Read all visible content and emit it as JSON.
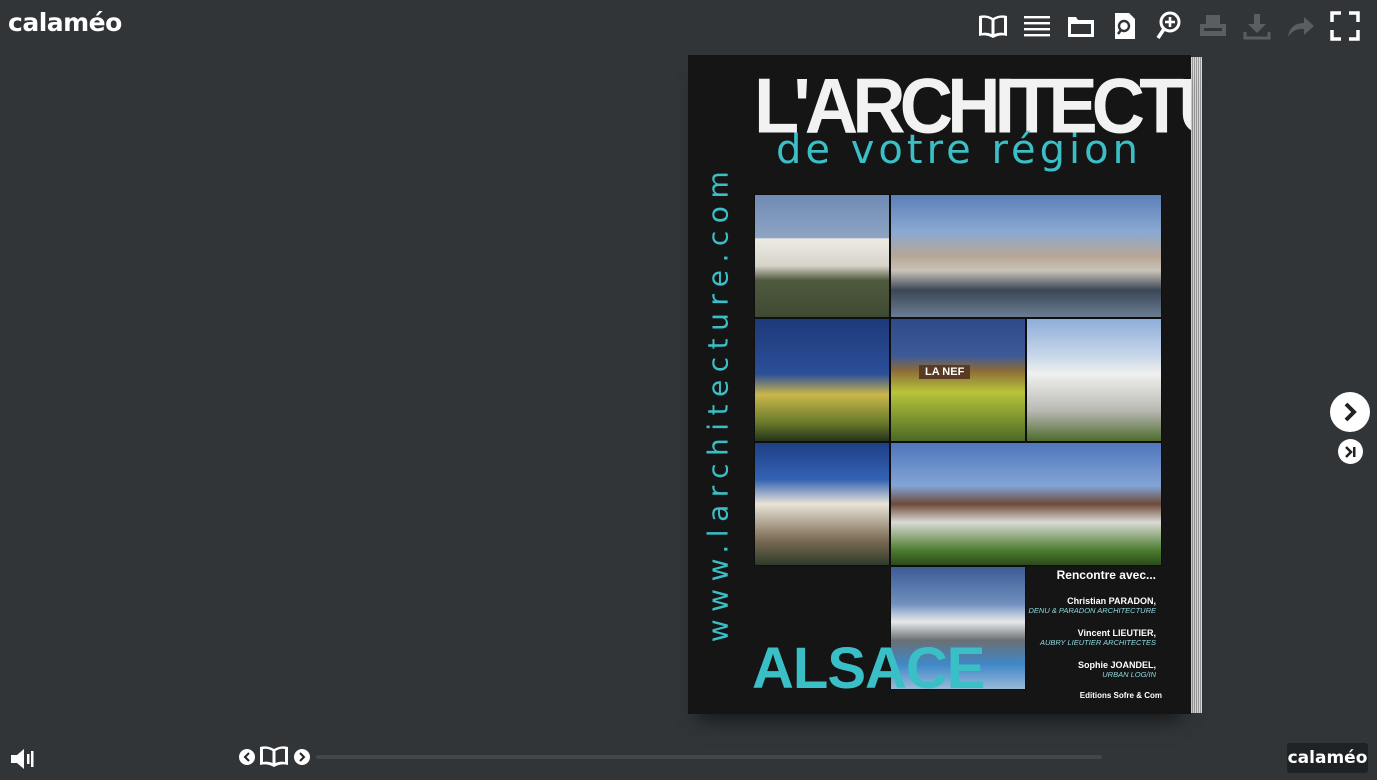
{
  "app": {
    "logo": "calaméo",
    "badge": "calaméo"
  },
  "toolbar": {
    "buttons": [
      {
        "name": "book-view",
        "icon": "open-book-icon",
        "enabled": true
      },
      {
        "name": "table-of-contents",
        "icon": "list-icon",
        "enabled": true
      },
      {
        "name": "folder",
        "icon": "folder-icon",
        "enabled": true
      },
      {
        "name": "search",
        "icon": "document-search-icon",
        "enabled": true
      },
      {
        "name": "zoom-in",
        "icon": "zoom-in-icon",
        "enabled": true
      },
      {
        "name": "print",
        "icon": "printer-icon",
        "enabled": false
      },
      {
        "name": "download",
        "icon": "download-icon",
        "enabled": false
      },
      {
        "name": "share",
        "icon": "share-arrow-icon",
        "enabled": false
      },
      {
        "name": "fullscreen",
        "icon": "fullscreen-icon",
        "enabled": true
      }
    ]
  },
  "cover": {
    "url": "www.larchitecture.com",
    "title": "L'ARCHITECTURE",
    "subtitle": "de votre région",
    "sign": "LA NEF",
    "region": "ALSACE",
    "rencontre": "Rencontre avec...",
    "people": [
      {
        "name": "Christian PARADON,",
        "firm": "DENU & PARADON ARCHITECTURE"
      },
      {
        "name": "Vincent LIEUTIER,",
        "firm": "AUBRY LIEUTIER ARCHITECTES"
      },
      {
        "name": "Sophie JOANDEL,",
        "firm": "URBAN LOG/IN"
      }
    ],
    "publisher": "Editions Sofre & Com"
  },
  "player": {
    "progress": 0
  },
  "colors": {
    "background": "#313538",
    "accent": "#3bbfc7"
  }
}
